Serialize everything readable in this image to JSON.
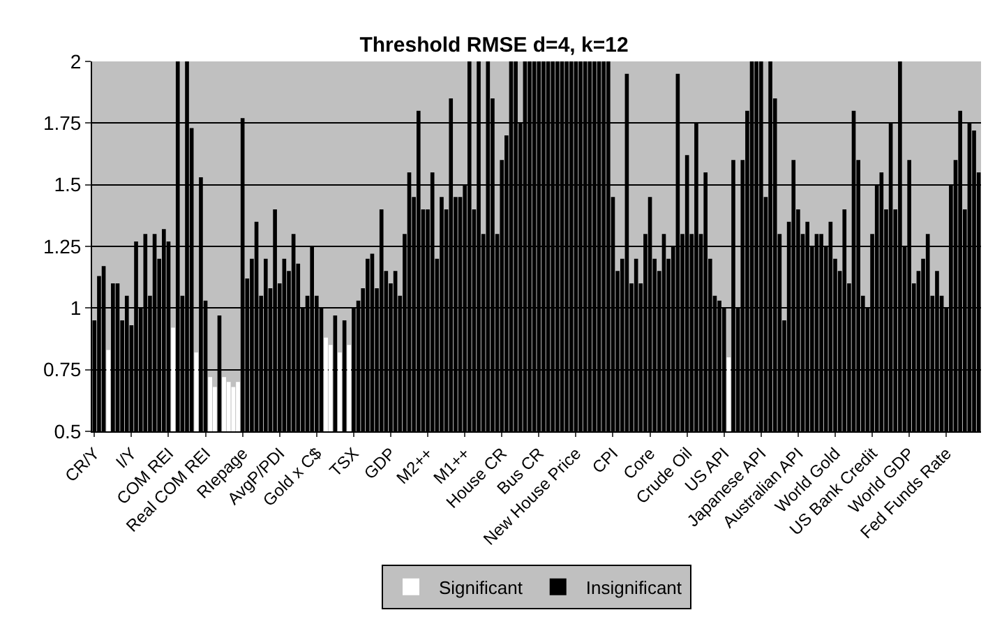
{
  "chart_data": {
    "type": "bar",
    "title": "Threshold RMSE d=4, k=12",
    "categories": [
      "CR/Y",
      null,
      null,
      null,
      null,
      null,
      null,
      null,
      "I/Y",
      null,
      null,
      null,
      null,
      null,
      null,
      null,
      "COM REI",
      null,
      null,
      null,
      null,
      null,
      null,
      null,
      "Real COM REI",
      null,
      null,
      null,
      null,
      null,
      null,
      null,
      "RIepage",
      null,
      null,
      null,
      null,
      null,
      null,
      null,
      "AvgP/PDI",
      null,
      null,
      null,
      null,
      null,
      null,
      null,
      "Gold x C$",
      null,
      null,
      null,
      null,
      null,
      null,
      null,
      "TSX",
      null,
      null,
      null,
      null,
      null,
      null,
      null,
      "GDP",
      null,
      null,
      null,
      null,
      null,
      null,
      null,
      "M2++",
      null,
      null,
      null,
      null,
      null,
      null,
      null,
      "M1++",
      null,
      null,
      null,
      null,
      null,
      null,
      null,
      "House CR",
      null,
      null,
      null,
      null,
      null,
      null,
      null,
      "Bus CR",
      null,
      null,
      null,
      null,
      null,
      null,
      null,
      "New House Price",
      null,
      null,
      null,
      null,
      null,
      null,
      null,
      "CPI",
      null,
      null,
      null,
      null,
      null,
      null,
      null,
      "Core",
      null,
      null,
      null,
      null,
      null,
      null,
      null,
      "Crude Oil",
      null,
      null,
      null,
      null,
      null,
      null,
      null,
      "US API",
      null,
      null,
      null,
      null,
      null,
      null,
      null,
      "Japanese API",
      null,
      null,
      null,
      null,
      null,
      null,
      null,
      "Australian API",
      null,
      null,
      null,
      null,
      null,
      null,
      null,
      "World Gold",
      null,
      null,
      null,
      null,
      null,
      null,
      null,
      "US Bank Credit",
      null,
      null,
      null,
      null,
      null,
      null,
      null,
      "World GDP",
      null,
      null,
      null,
      null,
      null,
      null,
      null,
      "Fed Funds Rate",
      null,
      null,
      null,
      null,
      null,
      null,
      null
    ],
    "series": [
      {
        "name": "Significant",
        "color": "#ffffff",
        "values": [
          null,
          null,
          null,
          0.83,
          null,
          null,
          null,
          null,
          null,
          null,
          null,
          null,
          null,
          null,
          null,
          null,
          null,
          0.92,
          null,
          null,
          null,
          null,
          0.82,
          null,
          null,
          0.72,
          0.68,
          null,
          0.72,
          0.7,
          0.68,
          0.7,
          null,
          null,
          null,
          null,
          null,
          null,
          null,
          null,
          null,
          null,
          null,
          null,
          null,
          null,
          null,
          null,
          null,
          null,
          0.88,
          0.85,
          null,
          0.82,
          null,
          0.85,
          null,
          null,
          null,
          null,
          null,
          null,
          null,
          null,
          null,
          null,
          null,
          null,
          null,
          null,
          null,
          null,
          null,
          null,
          null,
          null,
          null,
          null,
          null,
          null,
          null,
          null,
          null,
          null,
          null,
          null,
          null,
          null,
          null,
          null,
          null,
          null,
          null,
          null,
          null,
          null,
          null,
          null,
          null,
          null,
          null,
          null,
          null,
          null,
          null,
          null,
          null,
          null,
          null,
          null,
          null,
          null,
          null,
          null,
          null,
          null,
          null,
          null,
          null,
          null,
          null,
          null,
          null,
          null,
          null,
          null,
          null,
          null,
          null,
          null,
          null,
          null,
          null,
          null,
          null,
          null,
          null,
          0.8,
          null,
          null,
          null,
          null,
          null,
          null,
          null,
          null,
          null,
          null,
          null,
          null,
          null,
          null,
          null,
          null,
          null,
          null,
          null,
          null,
          null,
          null,
          null,
          null,
          null,
          null,
          null,
          null,
          null,
          null,
          null,
          null,
          null,
          null,
          null,
          null,
          null,
          null,
          null,
          null,
          null,
          null,
          null,
          null,
          null,
          null,
          null,
          null,
          null,
          null,
          null,
          null,
          null,
          null
        ]
      },
      {
        "name": "Insignificant",
        "color": "#000000",
        "values": [
          0.95,
          1.13,
          1.17,
          null,
          1.1,
          1.1,
          0.95,
          1.05,
          0.93,
          1.27,
          1.0,
          1.3,
          1.05,
          1.3,
          1.2,
          1.32,
          1.27,
          null,
          2.0,
          1.05,
          2.0,
          1.73,
          null,
          1.53,
          1.03,
          null,
          null,
          0.97,
          null,
          null,
          null,
          null,
          1.77,
          1.12,
          1.2,
          1.35,
          1.05,
          1.2,
          1.08,
          1.4,
          1.1,
          1.2,
          1.15,
          1.3,
          1.18,
          1.0,
          1.05,
          1.25,
          1.05,
          1.0,
          null,
          null,
          0.97,
          null,
          0.95,
          null,
          1.0,
          1.03,
          1.08,
          1.2,
          1.22,
          1.08,
          1.4,
          1.15,
          1.1,
          1.15,
          1.05,
          1.3,
          1.55,
          1.45,
          1.8,
          1.4,
          1.4,
          1.55,
          1.2,
          1.45,
          1.4,
          1.85,
          1.45,
          1.45,
          1.5,
          2.0,
          1.4,
          2.0,
          1.3,
          2.0,
          1.85,
          1.3,
          1.6,
          1.7,
          2.0,
          2.0,
          1.75,
          2.0,
          2.0,
          2.0,
          2.0,
          2.0,
          2.0,
          2.0,
          2.0,
          2.0,
          2.0,
          2.0,
          2.0,
          2.0,
          2.0,
          2.0,
          2.0,
          2.0,
          2.0,
          2.0,
          1.45,
          1.15,
          1.2,
          1.95,
          1.1,
          1.2,
          1.1,
          1.3,
          1.45,
          1.2,
          1.15,
          1.3,
          1.2,
          1.25,
          1.95,
          1.3,
          1.62,
          1.3,
          1.75,
          1.3,
          1.55,
          1.2,
          1.05,
          1.03,
          1.0,
          null,
          1.6,
          1.0,
          1.6,
          1.8,
          2.0,
          2.0,
          2.0,
          1.45,
          2.0,
          1.85,
          1.3,
          0.95,
          1.35,
          1.6,
          1.4,
          1.3,
          1.35,
          1.25,
          1.3,
          1.3,
          1.25,
          1.35,
          1.2,
          1.15,
          1.4,
          1.1,
          1.8,
          1.6,
          1.05,
          1.0,
          1.3,
          1.5,
          1.55,
          1.4,
          1.75,
          1.4,
          2.0,
          1.25,
          1.6,
          1.1,
          1.15,
          1.2,
          1.3,
          1.05,
          1.15,
          1.05,
          1.0,
          1.5,
          1.6,
          1.8,
          1.4,
          1.75,
          1.72,
          1.55
        ]
      }
    ],
    "ylim": [
      0.5,
      2
    ],
    "yticks": [
      0.5,
      0.75,
      1,
      1.25,
      1.5,
      1.75,
      2
    ],
    "grid": "y",
    "legend": "bottom"
  }
}
